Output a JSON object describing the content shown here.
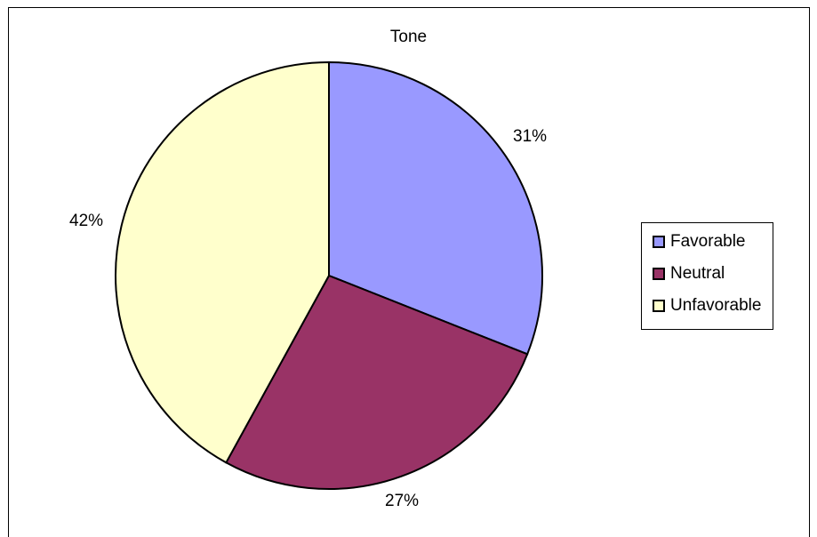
{
  "chart_data": {
    "type": "pie",
    "title": "Tone",
    "slices": [
      {
        "name": "Favorable",
        "value": 31,
        "label": "31%",
        "color": "#9999ff"
      },
      {
        "name": "Neutral",
        "value": 27,
        "label": "27%",
        "color": "#993366"
      },
      {
        "name": "Unfavorable",
        "value": 42,
        "label": "42%",
        "color": "#ffffcc"
      }
    ],
    "start": "12 o'clock",
    "direction": "clockwise",
    "legend_position": "right"
  }
}
